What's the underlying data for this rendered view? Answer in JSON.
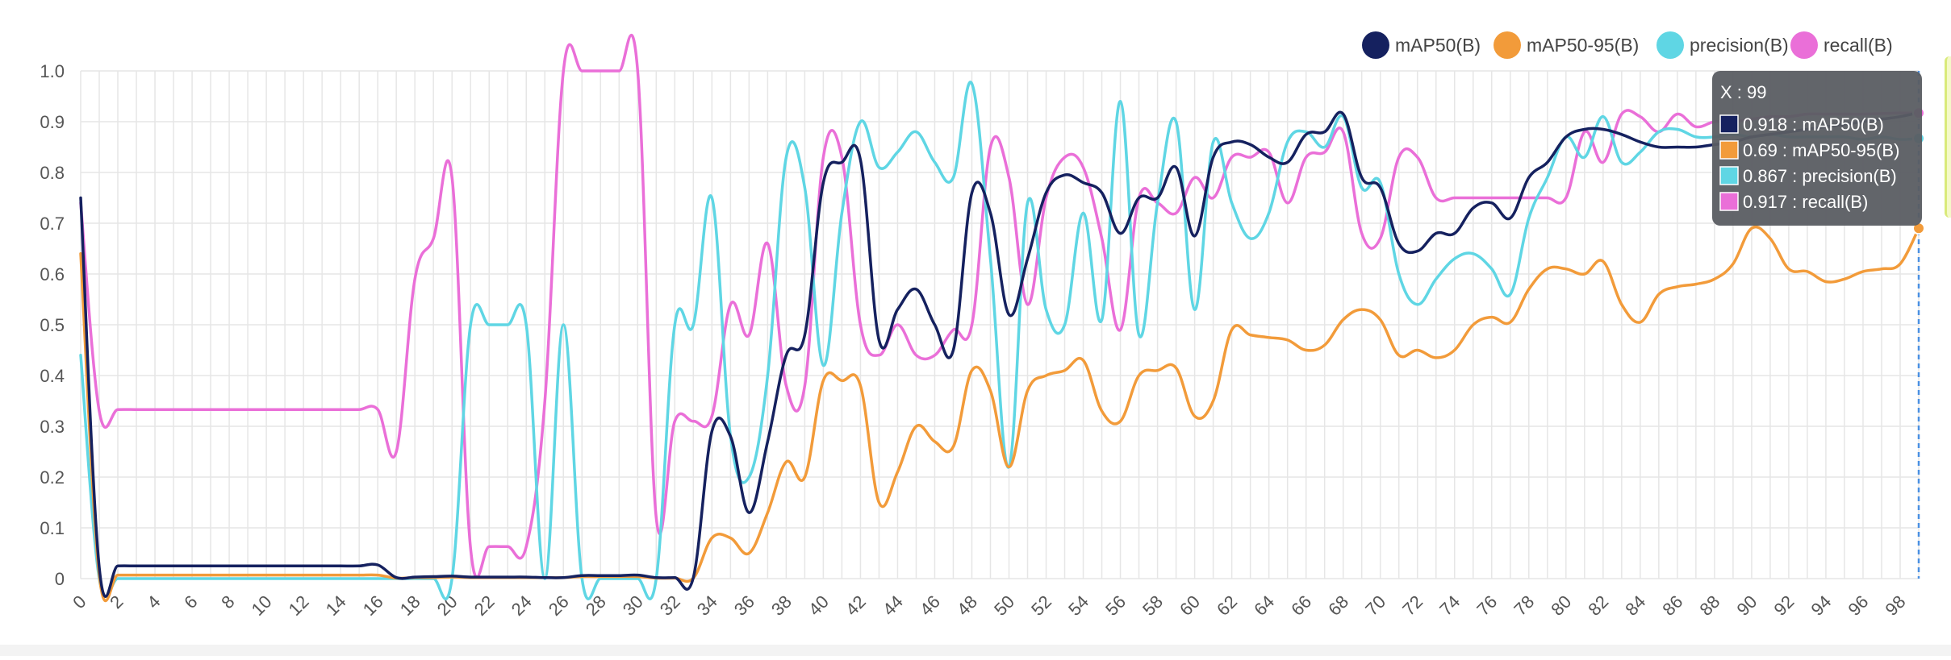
{
  "chart_data": {
    "type": "line",
    "title": "",
    "xlabel": "",
    "ylabel": "",
    "xlim": [
      0,
      99
    ],
    "ylim": [
      0,
      1.0
    ],
    "yticks": [
      0,
      0.1,
      0.2,
      0.3,
      0.4,
      0.5,
      0.6,
      0.7,
      0.8,
      0.9,
      1.0
    ],
    "ytick_labels": [
      "0",
      "0.1",
      "0.2",
      "0.3",
      "0.4",
      "0.5",
      "0.6",
      "0.7",
      "0.8",
      "0.9",
      "1.0"
    ],
    "xtick_labels": [
      "0",
      "2",
      "4",
      "6",
      "8",
      "10",
      "12",
      "14",
      "16",
      "18",
      "20",
      "22",
      "24",
      "26",
      "28",
      "30",
      "32",
      "34",
      "36",
      "38",
      "40",
      "42",
      "44",
      "46",
      "48",
      "50",
      "52",
      "54",
      "56",
      "58",
      "60",
      "62",
      "64",
      "66",
      "68",
      "70",
      "72",
      "74",
      "76",
      "78",
      "80",
      "82",
      "84",
      "86",
      "88",
      "90",
      "92",
      "94",
      "96",
      "98"
    ],
    "grid": true,
    "legend_position": "top-right",
    "x": [
      0,
      1,
      2,
      3,
      4,
      5,
      6,
      7,
      8,
      9,
      10,
      11,
      12,
      13,
      14,
      15,
      16,
      17,
      18,
      19,
      20,
      21,
      22,
      23,
      24,
      25,
      26,
      27,
      28,
      29,
      30,
      31,
      32,
      33,
      34,
      35,
      36,
      37,
      38,
      39,
      40,
      41,
      42,
      43,
      44,
      45,
      46,
      47,
      48,
      49,
      50,
      51,
      52,
      53,
      54,
      55,
      56,
      57,
      58,
      59,
      60,
      61,
      62,
      63,
      64,
      65,
      66,
      67,
      68,
      69,
      70,
      71,
      72,
      73,
      74,
      75,
      76,
      77,
      78,
      79,
      80,
      81,
      82,
      83,
      84,
      85,
      86,
      87,
      88,
      89,
      90,
      91,
      92,
      93,
      94,
      95,
      96,
      97,
      98,
      99
    ],
    "series": [
      {
        "name": "mAP50(B)",
        "color": "#15215f",
        "values": [
          0.75,
          0.022,
          0.025,
          0.025,
          0.025,
          0.025,
          0.025,
          0.025,
          0.025,
          0.025,
          0.025,
          0.025,
          0.025,
          0.025,
          0.025,
          0.025,
          0.027,
          0.002,
          0.003,
          0.004,
          0.005,
          0.003,
          0.003,
          0.003,
          0.003,
          0.002,
          0.002,
          0.006,
          0.006,
          0.006,
          0.007,
          0.002,
          0.002,
          0.002,
          0.29,
          0.28,
          0.13,
          0.27,
          0.44,
          0.48,
          0.78,
          0.82,
          0.825,
          0.47,
          0.53,
          0.57,
          0.5,
          0.45,
          0.76,
          0.72,
          0.52,
          0.63,
          0.76,
          0.795,
          0.78,
          0.76,
          0.68,
          0.75,
          0.75,
          0.81,
          0.675,
          0.83,
          0.86,
          0.855,
          0.83,
          0.82,
          0.875,
          0.88,
          0.915,
          0.79,
          0.77,
          0.66,
          0.645,
          0.68,
          0.68,
          0.73,
          0.74,
          0.71,
          0.79,
          0.82,
          0.87,
          0.885,
          0.885,
          0.875,
          0.86,
          0.85,
          0.85,
          0.85,
          0.855,
          0.86,
          0.87,
          0.875,
          0.88,
          0.885,
          0.89,
          0.895,
          0.9,
          0.905,
          0.91,
          0.918
        ]
      },
      {
        "name": "mAP50-95(B)",
        "color": "#f29b3a",
        "values": [
          0.64,
          0.007,
          0.007,
          0.007,
          0.007,
          0.007,
          0.007,
          0.007,
          0.007,
          0.007,
          0.007,
          0.007,
          0.007,
          0.007,
          0.007,
          0.007,
          0.007,
          0.001,
          0.002,
          0.002,
          0.003,
          0.002,
          0.002,
          0.002,
          0.002,
          0.002,
          0.002,
          0.004,
          0.004,
          0.004,
          0.004,
          0.001,
          0.001,
          0.001,
          0.08,
          0.08,
          0.05,
          0.13,
          0.23,
          0.2,
          0.39,
          0.39,
          0.38,
          0.15,
          0.21,
          0.3,
          0.27,
          0.26,
          0.41,
          0.37,
          0.22,
          0.37,
          0.4,
          0.41,
          0.43,
          0.33,
          0.31,
          0.4,
          0.41,
          0.415,
          0.32,
          0.35,
          0.49,
          0.48,
          0.475,
          0.47,
          0.45,
          0.46,
          0.51,
          0.53,
          0.51,
          0.44,
          0.45,
          0.435,
          0.45,
          0.5,
          0.515,
          0.505,
          0.57,
          0.61,
          0.61,
          0.6,
          0.625,
          0.54,
          0.505,
          0.56,
          0.575,
          0.58,
          0.59,
          0.62,
          0.69,
          0.67,
          0.61,
          0.605,
          0.585,
          0.59,
          0.605,
          0.61,
          0.62,
          0.69
        ]
      },
      {
        "name": "precision(B)",
        "color": "#5fd6e4",
        "values": [
          0.44,
          0.0,
          0.0,
          0.0,
          0.0,
          0.0,
          0.0,
          0.0,
          0.0,
          0.0,
          0.0,
          0.0,
          0.0,
          0.0,
          0.0,
          0.0,
          0.0,
          0.0,
          0.0,
          0.0,
          0.0,
          0.5,
          0.5,
          0.5,
          0.5,
          0.0,
          0.5,
          0.0,
          0.0,
          0.0,
          0.0,
          0.0,
          0.5,
          0.5,
          0.75,
          0.28,
          0.2,
          0.4,
          0.83,
          0.77,
          0.42,
          0.72,
          0.9,
          0.81,
          0.84,
          0.88,
          0.82,
          0.79,
          0.975,
          0.63,
          0.22,
          0.74,
          0.53,
          0.5,
          0.72,
          0.51,
          0.94,
          0.48,
          0.74,
          0.9,
          0.53,
          0.86,
          0.74,
          0.67,
          0.72,
          0.86,
          0.88,
          0.85,
          0.91,
          0.77,
          0.78,
          0.6,
          0.54,
          0.59,
          0.63,
          0.64,
          0.61,
          0.56,
          0.71,
          0.79,
          0.87,
          0.83,
          0.91,
          0.82,
          0.84,
          0.88,
          0.885,
          0.87,
          0.87,
          0.875,
          0.87,
          0.875,
          0.87,
          0.87,
          0.87,
          0.87,
          0.865,
          0.87,
          0.865,
          0.867
        ]
      },
      {
        "name": "recall(B)",
        "color": "#ea6fd8",
        "values": [
          0.74,
          0.33,
          0.333,
          0.333,
          0.333,
          0.333,
          0.333,
          0.333,
          0.333,
          0.333,
          0.333,
          0.333,
          0.333,
          0.333,
          0.333,
          0.333,
          0.333,
          0.25,
          0.59,
          0.67,
          0.79,
          0.06,
          0.063,
          0.063,
          0.063,
          0.35,
          1.0,
          1.0,
          1.0,
          1.0,
          1.0,
          0.12,
          0.31,
          0.31,
          0.32,
          0.54,
          0.48,
          0.66,
          0.38,
          0.38,
          0.83,
          0.83,
          0.5,
          0.44,
          0.5,
          0.44,
          0.44,
          0.49,
          0.5,
          0.85,
          0.79,
          0.54,
          0.75,
          0.83,
          0.81,
          0.67,
          0.49,
          0.75,
          0.74,
          0.72,
          0.79,
          0.75,
          0.83,
          0.83,
          0.84,
          0.74,
          0.83,
          0.84,
          0.88,
          0.68,
          0.67,
          0.83,
          0.83,
          0.75,
          0.75,
          0.75,
          0.75,
          0.75,
          0.75,
          0.75,
          0.75,
          0.88,
          0.82,
          0.915,
          0.91,
          0.88,
          0.915,
          0.89,
          0.9,
          0.9,
          0.905,
          0.91,
          0.91,
          0.915,
          0.915,
          0.915,
          0.915,
          0.916,
          0.917,
          0.917
        ]
      }
    ],
    "tooltip": {
      "x_label": "X : 99",
      "entries": [
        {
          "text": "0.918 : mAP50(B)",
          "color": "#15215f"
        },
        {
          "text": "0.69 : mAP50-95(B)",
          "color": "#f29b3a"
        },
        {
          "text": "0.867 : precision(B)",
          "color": "#5fd6e4"
        },
        {
          "text": "0.917 : recall(B)",
          "color": "#ea6fd8"
        }
      ]
    }
  }
}
